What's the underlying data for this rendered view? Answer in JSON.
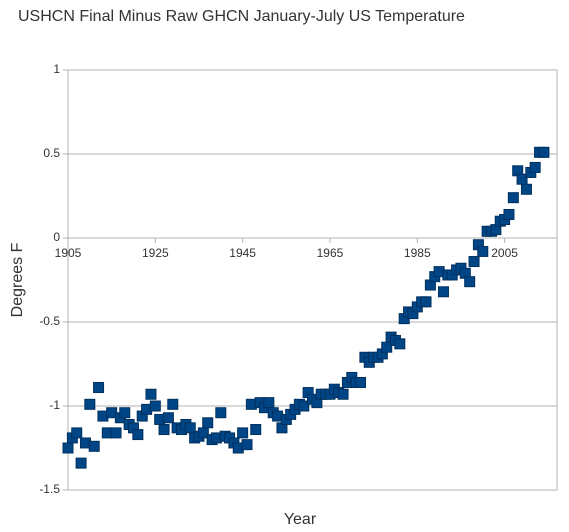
{
  "chart_data": {
    "type": "scatter",
    "title": "USHCN Final Minus Raw GHCN January-July US Temperature",
    "x_label": "Year",
    "y_label": "Degrees F",
    "color": "#004586",
    "grid": true,
    "xlim": [
      1905,
      2017
    ],
    "xticks": [
      1905,
      1925,
      1945,
      1965,
      1985,
      2005
    ],
    "ylim": [
      -1.5,
      1
    ],
    "yticks": [
      1,
      0.5,
      0,
      -0.5,
      -1,
      -1.5
    ],
    "x": [
      1905,
      1906,
      1907,
      1908,
      1909,
      1910,
      1911,
      1912,
      1913,
      1914,
      1915,
      1916,
      1917,
      1918,
      1919,
      1920,
      1921,
      1922,
      1923,
      1924,
      1925,
      1926,
      1927,
      1928,
      1929,
      1930,
      1931,
      1932,
      1933,
      1934,
      1935,
      1936,
      1937,
      1938,
      1939,
      1940,
      1941,
      1942,
      1943,
      1944,
      1945,
      1946,
      1947,
      1948,
      1949,
      1950,
      1951,
      1952,
      1953,
      1954,
      1955,
      1956,
      1957,
      1958,
      1959,
      1960,
      1961,
      1962,
      1963,
      1964,
      1965,
      1966,
      1967,
      1968,
      1969,
      1970,
      1971,
      1972,
      1973,
      1974,
      1975,
      1976,
      1977,
      1978,
      1979,
      1980,
      1981,
      1982,
      1983,
      1984,
      1985,
      1986,
      1987,
      1988,
      1989,
      1990,
      1991,
      1992,
      1993,
      1994,
      1995,
      1996,
      1997,
      1998,
      1999,
      2000,
      2001,
      2002,
      2003,
      2004,
      2005,
      2006,
      2007,
      2008,
      2009,
      2010,
      2011,
      2012,
      2013,
      2014
    ],
    "values": [
      -1.25,
      -1.19,
      -1.16,
      -1.34,
      -1.22,
      -0.99,
      -1.24,
      -0.89,
      -1.06,
      -1.16,
      -1.04,
      -1.16,
      -1.07,
      -1.04,
      -1.11,
      -1.13,
      -1.17,
      -1.06,
      -1.02,
      -0.93,
      -1.0,
      -1.08,
      -1.14,
      -1.07,
      -0.99,
      -1.13,
      -1.14,
      -1.11,
      -1.13,
      -1.19,
      -1.18,
      -1.16,
      -1.1,
      -1.2,
      -1.19,
      -1.04,
      -1.18,
      -1.19,
      -1.22,
      -1.25,
      -1.16,
      -1.23,
      -0.99,
      -1.14,
      -0.98,
      -1.01,
      -0.98,
      -1.04,
      -1.06,
      -1.13,
      -1.08,
      -1.05,
      -1.02,
      -0.99,
      -1.0,
      -0.92,
      -0.96,
      -0.98,
      -0.93,
      -0.93,
      -0.93,
      -0.9,
      -0.92,
      -0.93,
      -0.86,
      -0.83,
      -0.86,
      -0.86,
      -0.71,
      -0.74,
      -0.71,
      -0.71,
      -0.69,
      -0.65,
      -0.59,
      -0.61,
      -0.63,
      -0.48,
      -0.44,
      -0.45,
      -0.41,
      -0.38,
      -0.38,
      -0.28,
      -0.23,
      -0.2,
      -0.32,
      -0.22,
      -0.22,
      -0.19,
      -0.18,
      -0.21,
      -0.26,
      -0.14,
      -0.04,
      -0.08,
      0.04,
      0.04,
      0.05,
      0.1,
      0.11,
      0.14,
      0.24,
      0.4,
      0.35,
      0.29,
      0.39,
      0.42,
      0.51,
      0.51
    ]
  }
}
